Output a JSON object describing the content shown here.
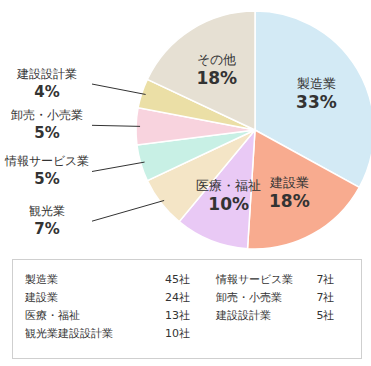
{
  "chart_data": {
    "type": "pie",
    "categories": [
      "製造業",
      "建設業",
      "医療・福祉",
      "観光業",
      "情報サービス業",
      "卸売・小売業",
      "建設設計業",
      "その他"
    ],
    "values": [
      33,
      18,
      10,
      7,
      5,
      5,
      4,
      18
    ],
    "value_labels": [
      "33%",
      "18%",
      "10%",
      "7%",
      "5%",
      "5%",
      "4%",
      "18%"
    ],
    "colors": [
      "#d3eaf5",
      "#f8ab8f",
      "#e9c9f5",
      "#f4e5c6",
      "#c8f0e5",
      "#f8d3de",
      "#ebdfa6",
      "#e6e0d3"
    ]
  },
  "table": {
    "columns": [
      {
        "rows": [
          [
            "製造業",
            "45社"
          ],
          [
            "建設業",
            "24社"
          ],
          [
            "医療・福祉",
            "13社"
          ],
          [
            "観光業建設設計業",
            "10社"
          ]
        ]
      },
      {
        "rows": [
          [
            "情報サービス業",
            "7社"
          ],
          [
            "卸売・小売業",
            "7社"
          ],
          [
            "建設設計業",
            "5社"
          ]
        ]
      }
    ]
  }
}
